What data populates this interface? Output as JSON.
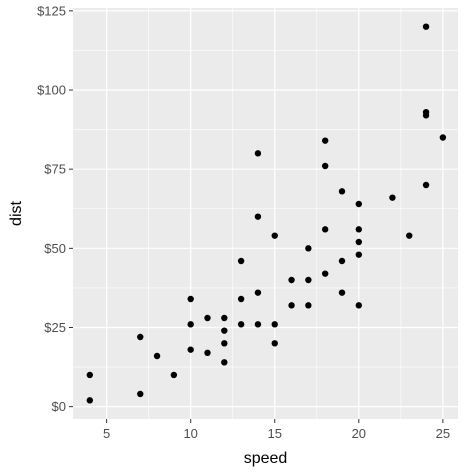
{
  "chart_data": {
    "type": "scatter",
    "title": "",
    "xlabel": "speed",
    "ylabel": "dist",
    "xlim": [
      3.0,
      25.9
    ],
    "ylim": [
      -3.9,
      125.9
    ],
    "x_ticks": [
      5,
      10,
      15,
      20,
      25
    ],
    "x_tick_labels": [
      "5",
      "10",
      "15",
      "20",
      "25"
    ],
    "y_ticks": [
      0,
      25,
      50,
      75,
      100,
      125
    ],
    "y_tick_labels": [
      "$0",
      "$25",
      "$50",
      "$75",
      "$100",
      "$125"
    ],
    "grid": true,
    "legend": "none",
    "colors": {
      "panel_background": "#ebebeb",
      "gridline": "#ffffff",
      "point": "#000000",
      "tick_label": "#4d4d4d",
      "axis_title": "#000000"
    },
    "points": [
      {
        "x": 4,
        "y": 2
      },
      {
        "x": 4,
        "y": 10
      },
      {
        "x": 7,
        "y": 4
      },
      {
        "x": 7,
        "y": 22
      },
      {
        "x": 8,
        "y": 16
      },
      {
        "x": 9,
        "y": 10
      },
      {
        "x": 10,
        "y": 18
      },
      {
        "x": 10,
        "y": 26
      },
      {
        "x": 10,
        "y": 34
      },
      {
        "x": 11,
        "y": 17
      },
      {
        "x": 11,
        "y": 28
      },
      {
        "x": 12,
        "y": 14
      },
      {
        "x": 12,
        "y": 20
      },
      {
        "x": 12,
        "y": 24
      },
      {
        "x": 12,
        "y": 28
      },
      {
        "x": 13,
        "y": 26
      },
      {
        "x": 13,
        "y": 34
      },
      {
        "x": 13,
        "y": 46
      },
      {
        "x": 14,
        "y": 26
      },
      {
        "x": 14,
        "y": 36
      },
      {
        "x": 14,
        "y": 60
      },
      {
        "x": 14,
        "y": 80
      },
      {
        "x": 15,
        "y": 20
      },
      {
        "x": 15,
        "y": 26
      },
      {
        "x": 15,
        "y": 54
      },
      {
        "x": 16,
        "y": 32
      },
      {
        "x": 16,
        "y": 40
      },
      {
        "x": 17,
        "y": 32
      },
      {
        "x": 17,
        "y": 40
      },
      {
        "x": 17,
        "y": 50
      },
      {
        "x": 18,
        "y": 42
      },
      {
        "x": 18,
        "y": 56
      },
      {
        "x": 18,
        "y": 76
      },
      {
        "x": 18,
        "y": 84
      },
      {
        "x": 19,
        "y": 36
      },
      {
        "x": 19,
        "y": 46
      },
      {
        "x": 19,
        "y": 68
      },
      {
        "x": 20,
        "y": 32
      },
      {
        "x": 20,
        "y": 48
      },
      {
        "x": 20,
        "y": 52
      },
      {
        "x": 20,
        "y": 56
      },
      {
        "x": 20,
        "y": 64
      },
      {
        "x": 22,
        "y": 66
      },
      {
        "x": 23,
        "y": 54
      },
      {
        "x": 24,
        "y": 70
      },
      {
        "x": 24,
        "y": 92
      },
      {
        "x": 24,
        "y": 93
      },
      {
        "x": 24,
        "y": 120
      },
      {
        "x": 25,
        "y": 85
      }
    ]
  }
}
